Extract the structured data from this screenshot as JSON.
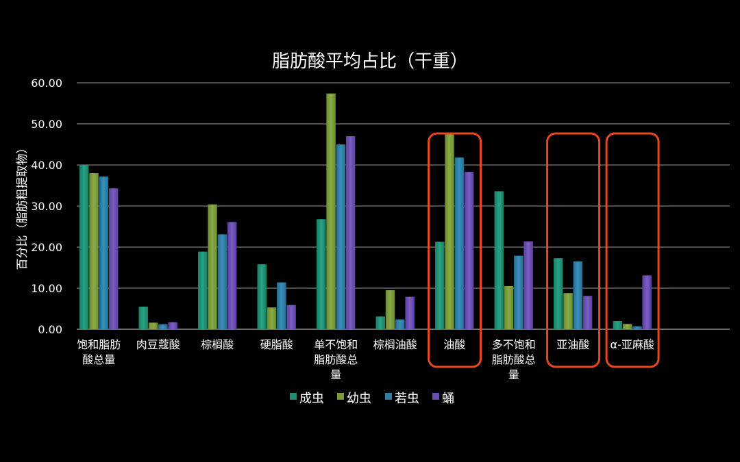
{
  "chart_data": {
    "type": "bar",
    "title": "脂肪酸平均占比（干重）",
    "ylabel": "百分比（脂肪粗提取物）",
    "ylim": [
      0,
      60
    ],
    "yticks": [
      "0.00",
      "10.00",
      "20.00",
      "30.00",
      "40.00",
      "50.00",
      "60.00"
    ],
    "grid": true,
    "legend_position": "bottom",
    "categories": [
      [
        "饱和脂肪",
        "酸总量"
      ],
      [
        "肉豆蔻酸"
      ],
      [
        "棕榈酸"
      ],
      [
        "硬脂酸"
      ],
      [
        "单不饱和",
        "脂肪酸总",
        "量"
      ],
      [
        "棕榈油酸"
      ],
      [
        "油酸"
      ],
      [
        "多不饱和",
        "脂肪酸总",
        "量"
      ],
      [
        "亚油酸"
      ],
      [
        "α-亚麻酸"
      ]
    ],
    "series": [
      {
        "name": "成虫",
        "color": "#1e8f73",
        "values": [
          40.0,
          5.5,
          18.9,
          15.8,
          26.8,
          3.1,
          21.3,
          33.6,
          17.3,
          2.0
        ]
      },
      {
        "name": "幼虫",
        "color": "#7a9a3c",
        "values": [
          38.0,
          1.6,
          30.4,
          5.3,
          57.4,
          9.5,
          47.6,
          10.5,
          8.8,
          1.3
        ]
      },
      {
        "name": "若虫",
        "color": "#2e7ea6",
        "values": [
          37.2,
          1.2,
          23.1,
          11.4,
          45.0,
          2.4,
          41.8,
          17.9,
          16.5,
          0.7
        ]
      },
      {
        "name": "蛹",
        "color": "#6b4fb0",
        "values": [
          34.3,
          1.7,
          26.1,
          5.9,
          47.0,
          7.9,
          38.3,
          21.4,
          8.1,
          13.1
        ]
      }
    ],
    "highlight_color": "#e8481d",
    "highlighted_categories": [
      6,
      8,
      9
    ]
  }
}
